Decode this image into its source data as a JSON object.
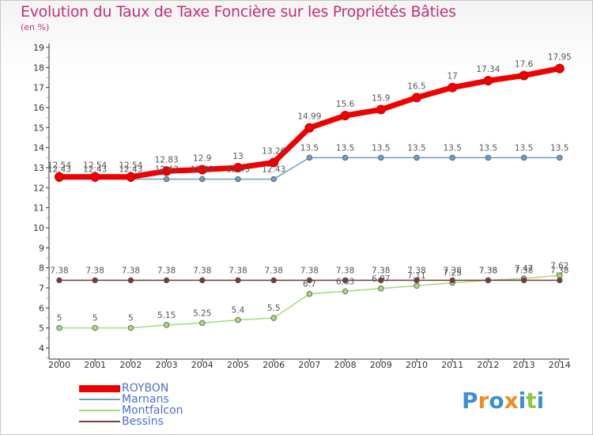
{
  "chart_data": {
    "type": "line",
    "title": "Evolution du Taux de Taxe Foncière sur les Propriétés Bâties",
    "subtitle": "(en %)",
    "x": [
      "2000",
      "2001",
      "2002",
      "2003",
      "2004",
      "2005",
      "2006",
      "2007",
      "2008",
      "2009",
      "2010",
      "2011",
      "2012",
      "2013",
      "2014"
    ],
    "yticks": [
      "4",
      "5",
      "6",
      "7",
      "8",
      "9",
      "10",
      "11",
      "12",
      "13",
      "14",
      "15",
      "16",
      "17",
      "18",
      "19"
    ],
    "ylim": [
      4,
      19
    ],
    "grid": false,
    "legend_position": "bottom-left",
    "series": [
      {
        "name": "ROYBON",
        "color": "#ee0000",
        "values": [
          12.54,
          12.54,
          12.54,
          12.83,
          12.9,
          13,
          13.26,
          14.99,
          15.6,
          15.9,
          16.5,
          17,
          17.34,
          17.6,
          17.95
        ],
        "labels": [
          "12.54",
          "12.54",
          "12.54",
          "12.83",
          "12.9",
          "13",
          "13.26",
          "14.99",
          "15.6",
          "15.9",
          "16.5",
          "17",
          "17.34",
          "17.6",
          "17.95"
        ]
      },
      {
        "name": "Marnans",
        "color": "#6a9fcf",
        "values": [
          12.43,
          12.43,
          12.43,
          12.43,
          12.43,
          12.43,
          12.43,
          13.5,
          13.5,
          13.5,
          13.5,
          13.5,
          13.5,
          13.5,
          13.5
        ],
        "labels": [
          "12.43",
          "12.43",
          "12.43",
          "12.43",
          "12.43",
          "12.43",
          "12.43",
          "13.5",
          "13.5",
          "13.5",
          "13.5",
          "13.5",
          "13.5",
          "13.5",
          "13.5"
        ]
      },
      {
        "name": "Montfalcon",
        "color": "#a6d97a",
        "values": [
          5,
          5,
          5,
          5.15,
          5.25,
          5.4,
          5.5,
          6.7,
          6.83,
          6.97,
          7.11,
          7.25,
          7.38,
          7.47,
          7.62
        ],
        "labels": [
          "5",
          "5",
          "5",
          "5.15",
          "5.25",
          "5.4",
          "5.5",
          "6.7",
          "6.83",
          "6.97",
          "7.11",
          "7.25",
          "7.38",
          "7.47",
          "7.62"
        ]
      },
      {
        "name": "Bessins",
        "color": "#7a3a3a",
        "values": [
          7.38,
          7.38,
          7.38,
          7.38,
          7.38,
          7.38,
          7.38,
          7.38,
          7.38,
          7.38,
          7.38,
          7.38,
          7.38,
          7.38,
          7.38
        ],
        "labels": [
          "7.38",
          "7.38",
          "7.38",
          "7.38",
          "7.38",
          "7.38",
          "7.38",
          "7.38",
          "7.38",
          "7.38",
          "7.38",
          "7.38",
          "7.38",
          "7.38",
          "7.38"
        ]
      }
    ]
  },
  "logo": {
    "letters": [
      "P",
      "r",
      "o",
      "x",
      "i",
      "t",
      "i"
    ],
    "colors": [
      "#3b8fd6",
      "#f28c1e",
      "#3b8fd6",
      "#f28c1e",
      "#3b8fd6",
      "#8dc63f",
      "#3b8fd6"
    ]
  }
}
